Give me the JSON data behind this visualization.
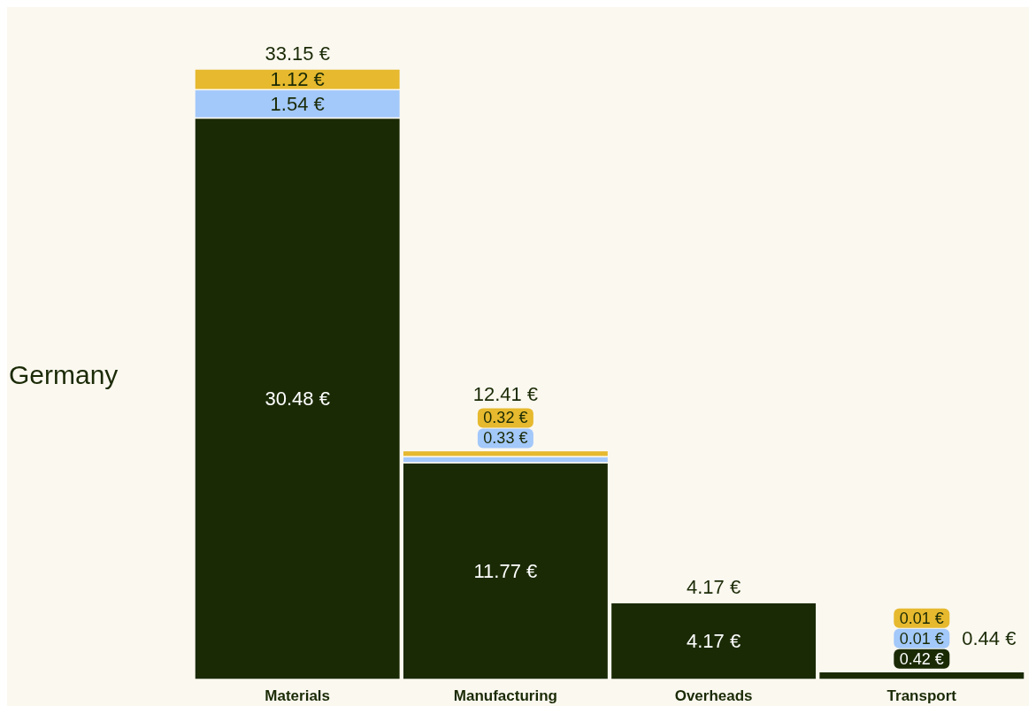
{
  "chart_data": {
    "type": "bar",
    "stacked": true,
    "annotations": [
      "Germany"
    ],
    "categories": [
      "Materials",
      "Manufacturing",
      "Overheads",
      "Transport"
    ],
    "series": [
      {
        "color": "#1a2a05",
        "values": [
          30.48,
          11.77,
          4.17,
          0.42
        ],
        "value_labels": [
          "30.48 €",
          "11.77 €",
          "4.17 €",
          "0.42 €"
        ]
      },
      {
        "color": "#a3c8fa",
        "values": [
          1.54,
          0.33,
          null,
          0.01
        ],
        "value_labels": [
          "1.54 €",
          "0.33 €",
          null,
          "0.01 €"
        ]
      },
      {
        "color": "#e6b92e",
        "values": [
          1.12,
          0.32,
          null,
          0.01
        ],
        "value_labels": [
          "1.12 €",
          "0.32 €",
          null,
          "0.01 €"
        ]
      }
    ],
    "totals": [
      "33.15 €",
      "12.41 €",
      "4.17 €",
      "0.44 €"
    ]
  }
}
